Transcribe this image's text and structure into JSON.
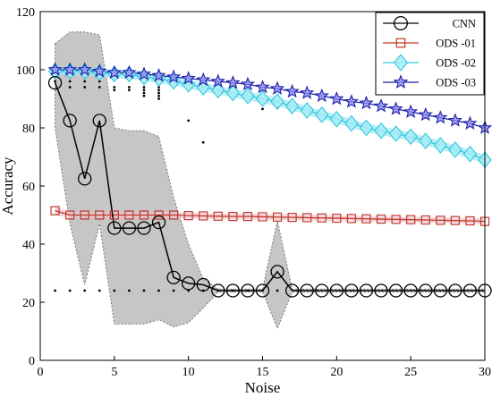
{
  "chart_data": {
    "type": "line",
    "xlabel": "Noise",
    "ylabel": "Accuracy",
    "xlim": [
      0,
      30
    ],
    "ylim": [
      0,
      120
    ],
    "xticks": [
      0,
      5,
      10,
      15,
      20,
      25,
      30
    ],
    "yticks": [
      0,
      20,
      40,
      60,
      80,
      100,
      120
    ],
    "grid": false,
    "legend_position": "top-right",
    "x": [
      1,
      2,
      3,
      4,
      5,
      6,
      7,
      8,
      9,
      10,
      11,
      12,
      13,
      14,
      15,
      16,
      17,
      18,
      19,
      20,
      21,
      22,
      23,
      24,
      25,
      26,
      27,
      28,
      29,
      30
    ],
    "series": [
      {
        "name": "CNN",
        "color": "#000000",
        "marker": "circle",
        "values": [
          95.5,
          82.5,
          62.5,
          82.5,
          45.5,
          45.5,
          45.5,
          47.5,
          28.5,
          26.5,
          26,
          24,
          24,
          24,
          24,
          30.5,
          24,
          24,
          24,
          24,
          24,
          24,
          24,
          24,
          24,
          24,
          24,
          24,
          24,
          24
        ],
        "band_upper": [
          109,
          113,
          113,
          112,
          80,
          79,
          79,
          77,
          56,
          40,
          28,
          24.5,
          24.5,
          24.5,
          24.5,
          48,
          24.5,
          24.5,
          24.5,
          24.5,
          24.5,
          24.5,
          24.5,
          24.5,
          24.5,
          24.5,
          24.5,
          24.5,
          24.5,
          24.5
        ],
        "band_lower": [
          80,
          47,
          26,
          47,
          12.5,
          12.5,
          12.5,
          14,
          11.5,
          13,
          18,
          23.5,
          23.5,
          23.5,
          23.5,
          11,
          23.5,
          23.5,
          23.5,
          23.5,
          23.5,
          23.5,
          23.5,
          23.5,
          23.5,
          23.5,
          23.5,
          23.5,
          23.5,
          23.5
        ],
        "band_color": "#c0c0c0"
      },
      {
        "name": "ODS -01",
        "color": "#c0392b",
        "marker": "square",
        "values": [
          51.5,
          50,
          50,
          50,
          50,
          50,
          50,
          50,
          50,
          49.8,
          49.7,
          49.6,
          49.5,
          49.5,
          49.4,
          49.3,
          49.2,
          49.1,
          49,
          48.9,
          48.8,
          48.7,
          48.6,
          48.5,
          48.4,
          48.3,
          48.2,
          48.1,
          48,
          47.8
        ],
        "band_upper": [
          53,
          51,
          51,
          51,
          51,
          51,
          51,
          51,
          51,
          50.8,
          50.7,
          50.6,
          50.5,
          50.5,
          50.4,
          50.3,
          50.2,
          50.1,
          50,
          49.9,
          49.8,
          49.7,
          49.6,
          49.5,
          49.4,
          49.3,
          49.2,
          49.1,
          49,
          48.8
        ],
        "band_lower": [
          50,
          49,
          49,
          49,
          49,
          49,
          49,
          49,
          49,
          48.8,
          48.7,
          48.6,
          48.5,
          48.5,
          48.4,
          48.3,
          48.2,
          48.1,
          48,
          47.9,
          47.8,
          47.7,
          47.6,
          47.5,
          47.4,
          47.3,
          47.2,
          47.1,
          47,
          46.8
        ],
        "band_color": "#f2c4cf"
      },
      {
        "name": "ODS -02",
        "color": "#33c7e0",
        "marker": "diamond",
        "values": [
          99.5,
          99.5,
          99.5,
          99,
          98.5,
          98.5,
          97.5,
          97,
          96,
          95,
          94,
          93,
          92,
          91,
          90,
          89,
          87.5,
          86,
          84.5,
          83,
          81.5,
          80,
          79,
          78,
          77,
          75.5,
          74,
          72.5,
          71,
          69
        ],
        "band_upper": [
          101,
          101,
          101,
          100.5,
          100,
          100,
          99,
          98.5,
          97.5,
          96.5,
          95.5,
          94.5,
          93.5,
          92.5,
          91.5,
          90.5,
          89,
          87.5,
          86,
          84.5,
          83,
          81.5,
          80.5,
          79.5,
          78.5,
          77,
          75.5,
          74,
          72.5,
          70.5
        ],
        "band_lower": [
          98,
          98,
          98,
          97.5,
          97,
          97,
          96,
          95.5,
          94.5,
          93.5,
          92.5,
          91.5,
          90.5,
          89.5,
          88.5,
          87.5,
          86,
          84.5,
          83,
          81.5,
          80,
          78.5,
          77.5,
          76.5,
          75.5,
          74,
          72.5,
          71,
          69.5,
          67.5
        ],
        "band_color": "#9fe8f2"
      },
      {
        "name": "ODS -03",
        "color": "#1f1fa8",
        "marker": "star",
        "values": [
          100,
          100,
          100,
          99.5,
          99,
          99,
          98.5,
          98,
          97.5,
          97,
          96.5,
          96,
          95.5,
          95,
          94,
          93.5,
          92.5,
          92,
          91,
          90,
          89,
          88.5,
          87.5,
          86.5,
          85.5,
          84.5,
          83.5,
          82.5,
          81.5,
          80
        ],
        "band_upper": null,
        "band_lower": null,
        "band_color": null
      }
    ],
    "scatter_points": [
      [
        1,
        24
      ],
      [
        2,
        24
      ],
      [
        3,
        24
      ],
      [
        4,
        24
      ],
      [
        5,
        24
      ],
      [
        6,
        24
      ],
      [
        7,
        24
      ],
      [
        8,
        24
      ],
      [
        9,
        24
      ],
      [
        10,
        24
      ],
      [
        11,
        24
      ],
      [
        12,
        24
      ],
      [
        13,
        24
      ],
      [
        14,
        24
      ],
      [
        15,
        24
      ],
      [
        16,
        24
      ],
      [
        1,
        96
      ],
      [
        2,
        96
      ],
      [
        2,
        94
      ],
      [
        3,
        96
      ],
      [
        3,
        94
      ],
      [
        4,
        96
      ],
      [
        4,
        94
      ],
      [
        5,
        94
      ],
      [
        6,
        94
      ],
      [
        5,
        93
      ],
      [
        6,
        93
      ],
      [
        7,
        94
      ],
      [
        7,
        93
      ],
      [
        7,
        92
      ],
      [
        7,
        91
      ],
      [
        8,
        94
      ],
      [
        8,
        93
      ],
      [
        8,
        92
      ],
      [
        8,
        91
      ],
      [
        8,
        90
      ],
      [
        9,
        97
      ],
      [
        10,
        82.5
      ],
      [
        11,
        75
      ],
      [
        15,
        86.5
      ],
      [
        16,
        87
      ]
    ]
  }
}
